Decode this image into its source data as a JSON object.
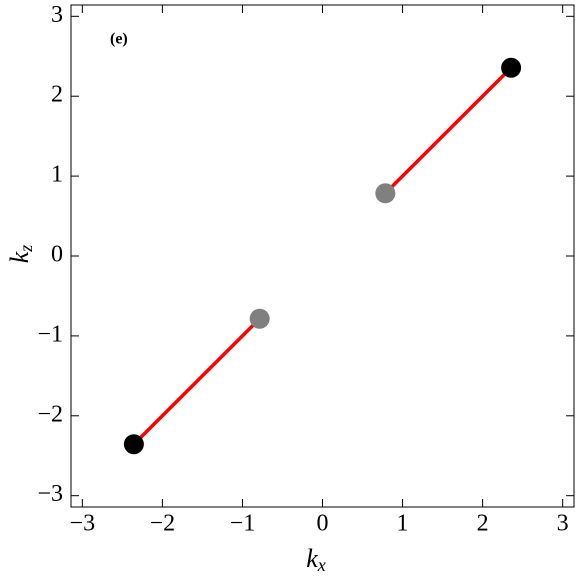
{
  "chart_data": {
    "type": "scatter",
    "panel_label": "(e)",
    "xlabel": {
      "main": "k",
      "sub": "x"
    },
    "ylabel": {
      "main": "k",
      "sub": "z"
    },
    "xlim": [
      -3.1416,
      3.1416
    ],
    "ylim": [
      -3.1416,
      3.1416
    ],
    "xticks": [
      {
        "value": -3,
        "label": "−3"
      },
      {
        "value": -2,
        "label": "−2"
      },
      {
        "value": -1,
        "label": "−1"
      },
      0,
      1,
      2,
      3
    ],
    "yticks": [
      {
        "value": -3,
        "label": "−3"
      },
      {
        "value": -2,
        "label": "−2"
      },
      {
        "value": -1,
        "label": "−1"
      },
      0,
      1,
      2,
      3
    ],
    "series": [
      {
        "mode": "line",
        "color": "#ff0000",
        "x": [
          -2.356,
          -0.785
        ],
        "values": [
          -2.356,
          -0.785
        ]
      },
      {
        "mode": "line",
        "color": "#ff0000",
        "x": [
          0.785,
          2.356
        ],
        "values": [
          0.785,
          2.356
        ]
      },
      {
        "mode": "marker",
        "color": "#000000",
        "x": [
          -2.356,
          2.356
        ],
        "values": [
          -2.356,
          2.356
        ]
      },
      {
        "mode": "marker",
        "color": "#808080",
        "x": [
          -0.785,
          0.785
        ],
        "values": [
          -0.785,
          0.785
        ]
      }
    ]
  }
}
